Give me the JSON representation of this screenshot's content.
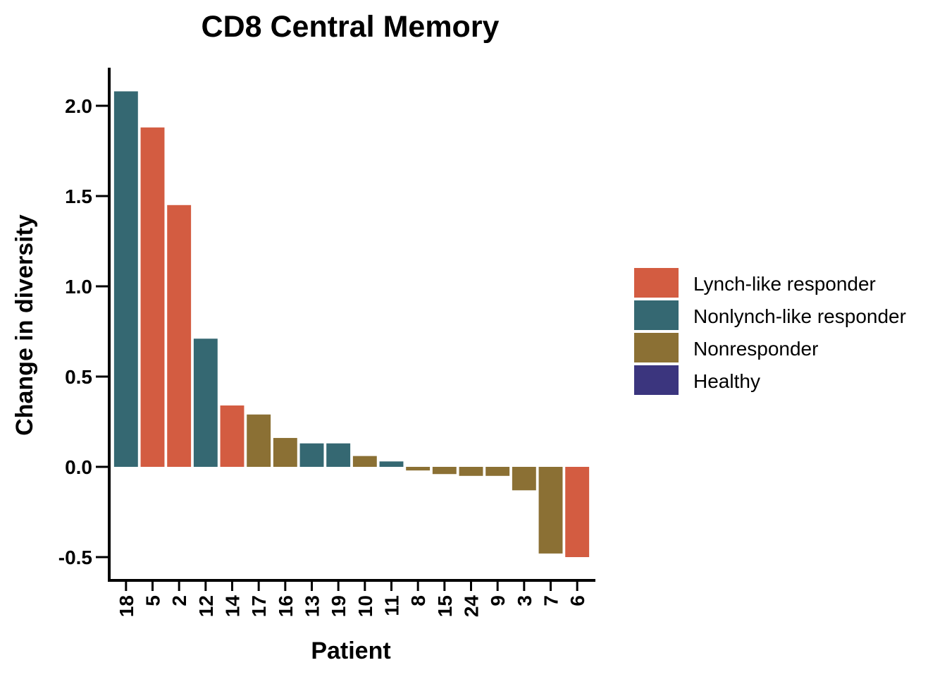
{
  "chart_data": {
    "type": "bar",
    "title": "CD8 Central Memory",
    "xlabel": "Patient",
    "ylabel": "Change in diversity",
    "ylim": [
      -0.62,
      2.22
    ],
    "yticks": [
      -0.5,
      0.0,
      0.5,
      1.0,
      1.5,
      2.0
    ],
    "ytick_labels": [
      "-0.5",
      "0.0",
      "0.5",
      "1.0",
      "1.5",
      "2.0"
    ],
    "grid": false,
    "legend_position": "right",
    "categories": [
      "18",
      "5",
      "2",
      "12",
      "14",
      "17",
      "16",
      "13",
      "19",
      "10",
      "11",
      "8",
      "15",
      "24",
      "9",
      "3",
      "7",
      "6"
    ],
    "values": [
      2.08,
      1.88,
      1.45,
      0.71,
      0.34,
      0.29,
      0.16,
      0.13,
      0.13,
      0.06,
      0.03,
      -0.02,
      -0.04,
      -0.05,
      -0.05,
      -0.13,
      -0.48,
      -0.5
    ],
    "groups": [
      "Nonlynch-like responder",
      "Lynch-like responder",
      "Lynch-like responder",
      "Nonlynch-like responder",
      "Lynch-like responder",
      "Nonresponder",
      "Nonresponder",
      "Nonlynch-like responder",
      "Nonlynch-like responder",
      "Nonresponder",
      "Nonlynch-like responder",
      "Nonresponder",
      "Nonresponder",
      "Nonresponder",
      "Nonresponder",
      "Nonresponder",
      "Nonresponder",
      "Lynch-like responder"
    ],
    "legend": [
      {
        "name": "Lynch-like responder",
        "color": "#d35c41"
      },
      {
        "name": "Nonlynch-like responder",
        "color": "#356872"
      },
      {
        "name": "Nonresponder",
        "color": "#8b7034"
      },
      {
        "name": "Healthy",
        "color": "#3b357e"
      }
    ]
  }
}
